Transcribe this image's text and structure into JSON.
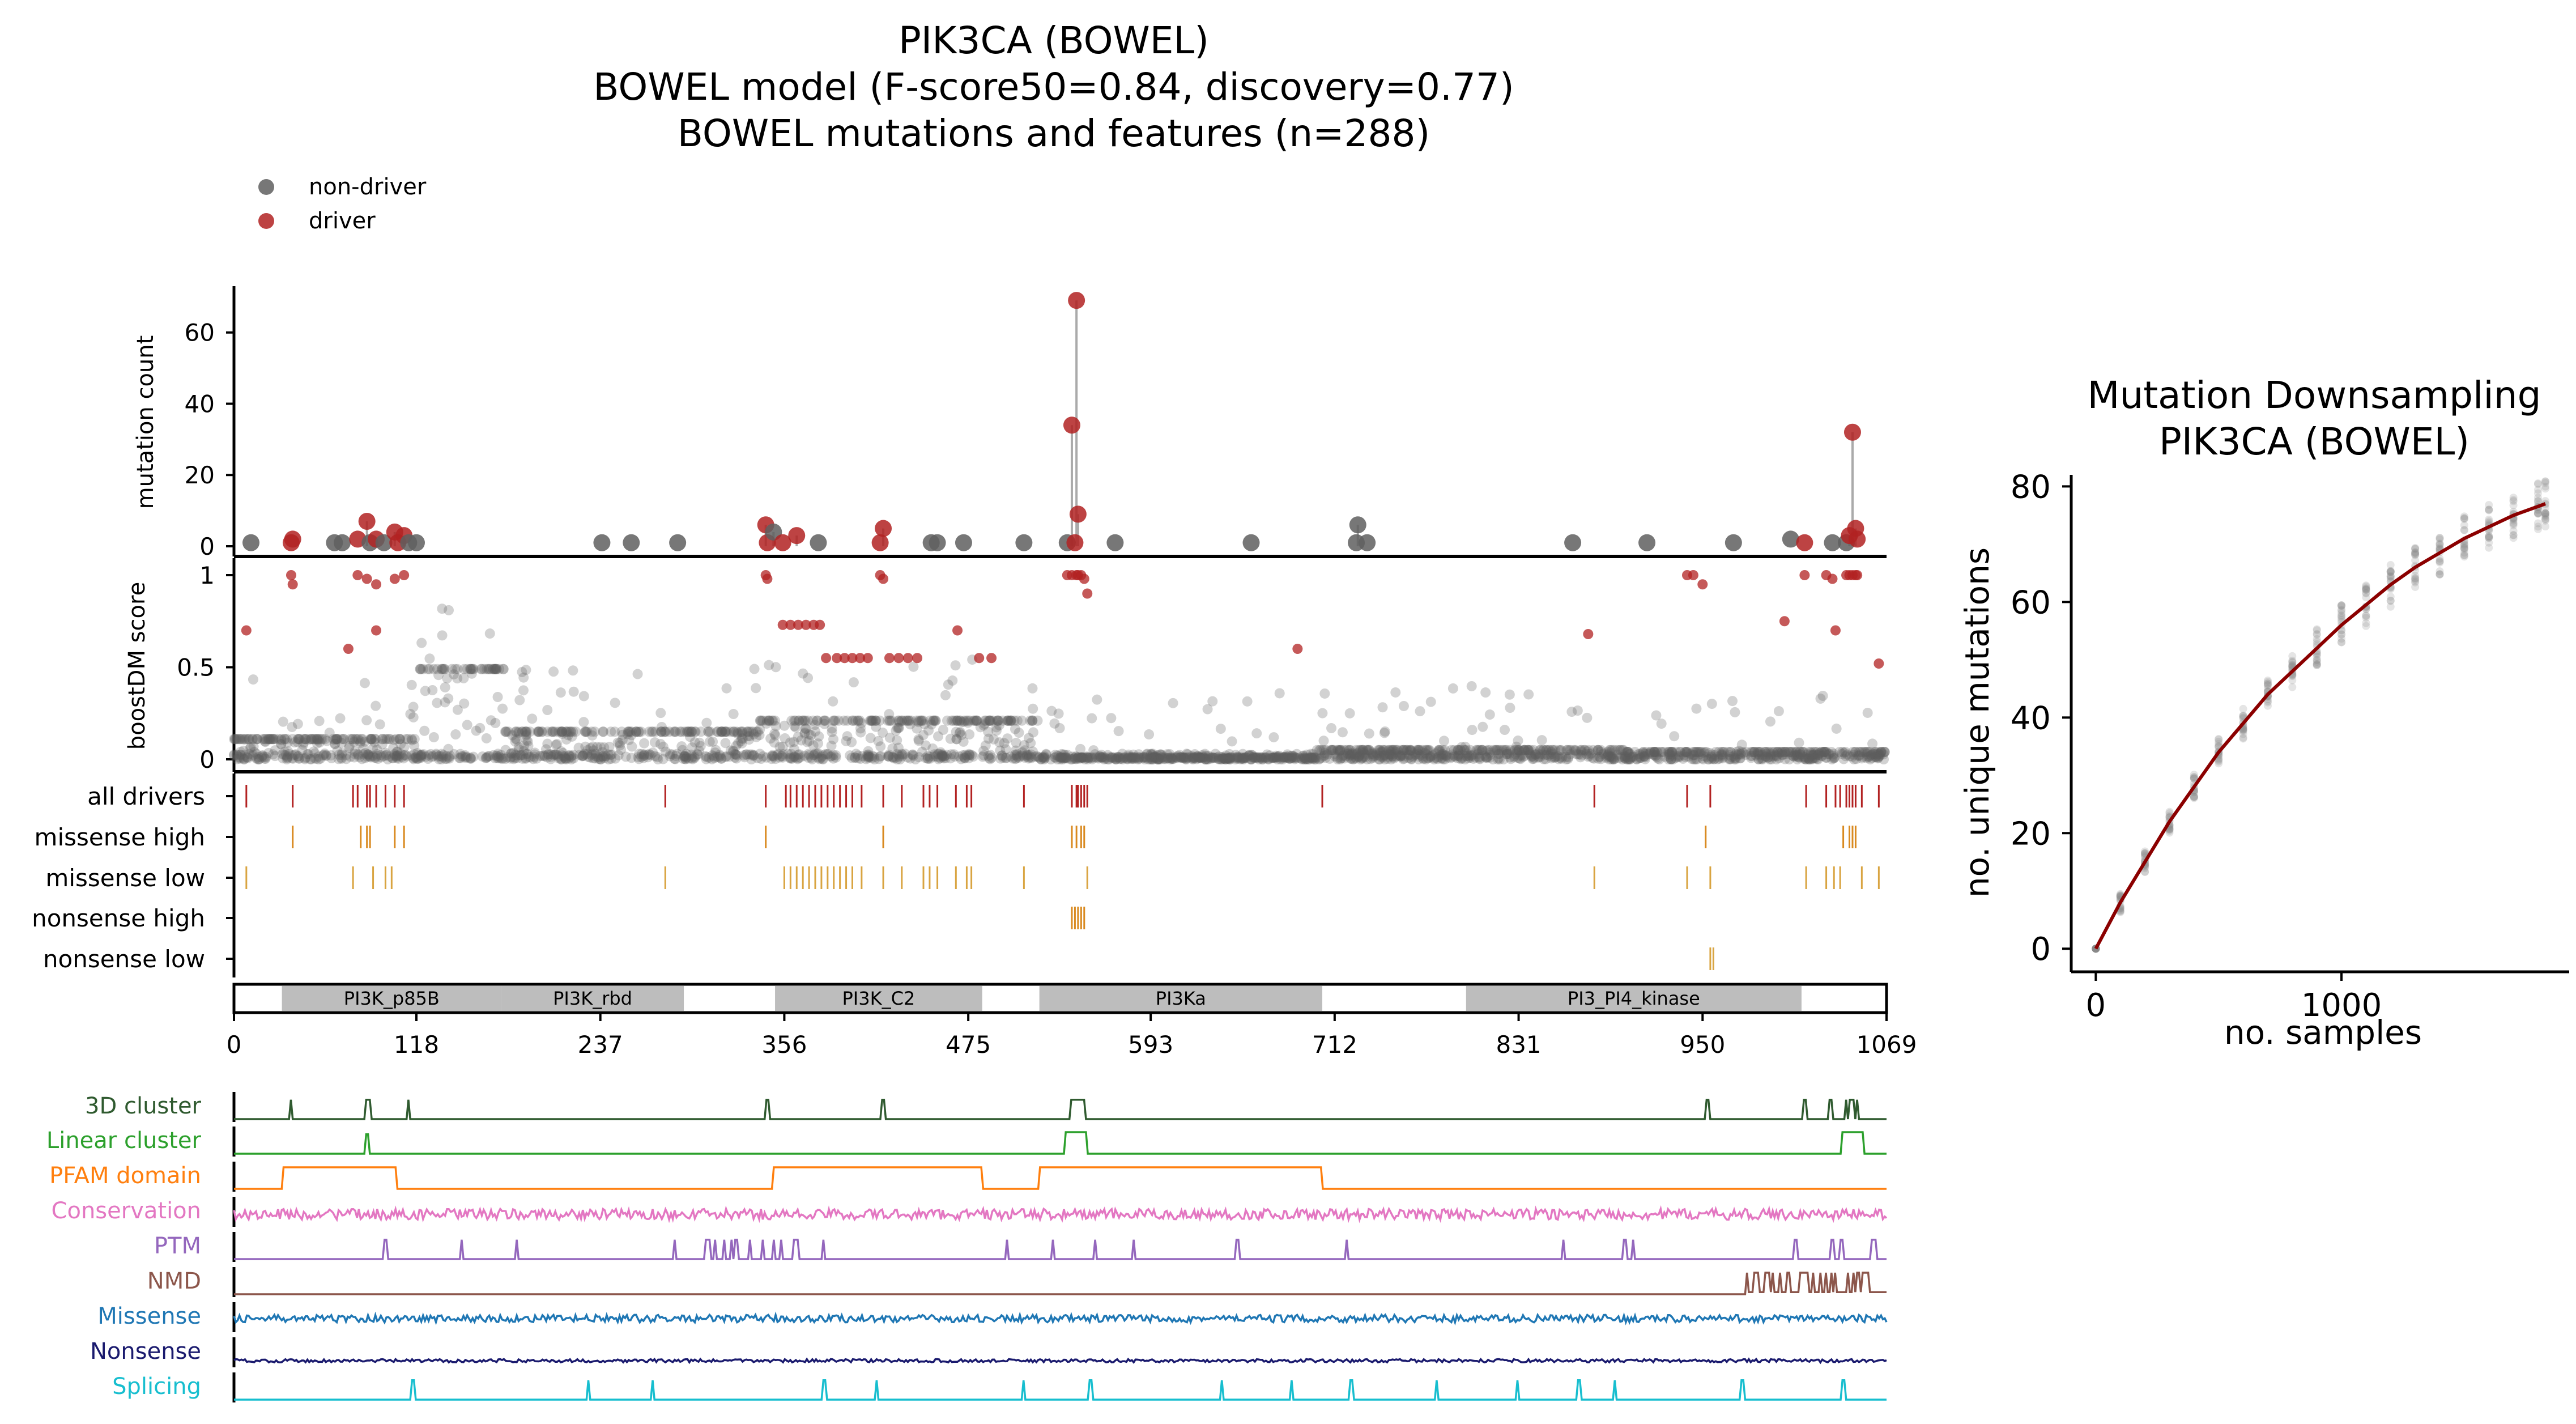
{
  "title": {
    "line1": "PIK3CA (BOWEL)",
    "line2": "BOWEL model (F-score50=0.84, discovery=0.77)",
    "line3": "BOWEL mutations and features (n=288)"
  },
  "legend": [
    {
      "label": "non-driver",
      "color": "#5f5f5f"
    },
    {
      "label": "driver",
      "color": "#b22222"
    }
  ],
  "colors": {
    "nondriver": "#5f5f5f",
    "driver": "#b22222",
    "driver_dark": "#8b0000",
    "missense_high": "#d98a20",
    "missense_low": "#d9a441",
    "domain_fill": "#bdbdbd"
  },
  "chart_data": [
    {
      "type": "scatter",
      "name": "mutation-count-lollipop",
      "ylabel": "mutation count",
      "yticks": [
        0,
        20,
        40,
        60
      ],
      "ylim": [
        0,
        73
      ],
      "xlim": [
        0,
        1069
      ],
      "points": [
        {
          "x": 11,
          "y": 1,
          "driver": false
        },
        {
          "x": 37,
          "y": 1,
          "driver": true
        },
        {
          "x": 38,
          "y": 2,
          "driver": true
        },
        {
          "x": 65,
          "y": 1,
          "driver": false
        },
        {
          "x": 70,
          "y": 1,
          "driver": false
        },
        {
          "x": 80,
          "y": 2,
          "driver": true
        },
        {
          "x": 86,
          "y": 7,
          "driver": true
        },
        {
          "x": 88,
          "y": 1,
          "driver": false
        },
        {
          "x": 92,
          "y": 2,
          "driver": true
        },
        {
          "x": 97,
          "y": 1,
          "driver": false
        },
        {
          "x": 104,
          "y": 4,
          "driver": true
        },
        {
          "x": 106,
          "y": 1,
          "driver": true
        },
        {
          "x": 110,
          "y": 3,
          "driver": true
        },
        {
          "x": 113,
          "y": 1,
          "driver": false
        },
        {
          "x": 118,
          "y": 1,
          "driver": false
        },
        {
          "x": 238,
          "y": 1,
          "driver": false
        },
        {
          "x": 257,
          "y": 1,
          "driver": false
        },
        {
          "x": 287,
          "y": 1,
          "driver": false
        },
        {
          "x": 344,
          "y": 6,
          "driver": true
        },
        {
          "x": 345,
          "y": 1,
          "driver": true
        },
        {
          "x": 349,
          "y": 4,
          "driver": false
        },
        {
          "x": 355,
          "y": 1,
          "driver": true
        },
        {
          "x": 364,
          "y": 3,
          "driver": true
        },
        {
          "x": 378,
          "y": 1,
          "driver": false
        },
        {
          "x": 418,
          "y": 1,
          "driver": true
        },
        {
          "x": 420,
          "y": 5,
          "driver": true
        },
        {
          "x": 451,
          "y": 1,
          "driver": false
        },
        {
          "x": 455,
          "y": 1,
          "driver": false
        },
        {
          "x": 472,
          "y": 1,
          "driver": false
        },
        {
          "x": 511,
          "y": 1,
          "driver": false
        },
        {
          "x": 539,
          "y": 1,
          "driver": false
        },
        {
          "x": 542,
          "y": 34,
          "driver": true
        },
        {
          "x": 545,
          "y": 69,
          "driver": true
        },
        {
          "x": 546,
          "y": 9,
          "driver": true
        },
        {
          "x": 544,
          "y": 1,
          "driver": true
        },
        {
          "x": 570,
          "y": 1,
          "driver": false
        },
        {
          "x": 658,
          "y": 1,
          "driver": false
        },
        {
          "x": 726,
          "y": 1,
          "driver": false
        },
        {
          "x": 727,
          "y": 6,
          "driver": false
        },
        {
          "x": 733,
          "y": 1,
          "driver": false
        },
        {
          "x": 866,
          "y": 1,
          "driver": false
        },
        {
          "x": 914,
          "y": 1,
          "driver": false
        },
        {
          "x": 970,
          "y": 1,
          "driver": false
        },
        {
          "x": 1007,
          "y": 2,
          "driver": false
        },
        {
          "x": 1016,
          "y": 1,
          "driver": true
        },
        {
          "x": 1034,
          "y": 1,
          "driver": false
        },
        {
          "x": 1043,
          "y": 1,
          "driver": false
        },
        {
          "x": 1045,
          "y": 3,
          "driver": true
        },
        {
          "x": 1047,
          "y": 32,
          "driver": true
        },
        {
          "x": 1049,
          "y": 5,
          "driver": true
        },
        {
          "x": 1050,
          "y": 2,
          "driver": true
        }
      ]
    },
    {
      "type": "scatter",
      "name": "boostdm-score",
      "ylabel": "boostDM score",
      "yticks": [
        0,
        0.5,
        1
      ],
      "ylim": [
        -0.02,
        1.05
      ],
      "xlim": [
        0,
        1069
      ],
      "driver_points": [
        [
          37,
          1.0
        ],
        [
          38,
          0.95
        ],
        [
          8,
          0.7
        ],
        [
          80,
          1.0
        ],
        [
          86,
          0.98
        ],
        [
          92,
          0.95
        ],
        [
          110,
          1.0
        ],
        [
          74,
          0.6
        ],
        [
          92,
          0.7
        ],
        [
          104,
          0.98
        ],
        [
          344,
          1.0
        ],
        [
          345,
          0.98
        ],
        [
          355,
          0.73
        ],
        [
          360,
          0.73
        ],
        [
          365,
          0.73
        ],
        [
          370,
          0.73
        ],
        [
          375,
          0.73
        ],
        [
          379,
          0.73
        ],
        [
          383,
          0.55
        ],
        [
          390,
          0.55
        ],
        [
          395,
          0.55
        ],
        [
          400,
          0.55
        ],
        [
          405,
          0.55
        ],
        [
          410,
          0.55
        ],
        [
          418,
          1.0
        ],
        [
          420,
          0.98
        ],
        [
          424,
          0.55
        ],
        [
          430,
          0.55
        ],
        [
          436,
          0.55
        ],
        [
          442,
          0.55
        ],
        [
          468,
          0.7
        ],
        [
          482,
          0.55
        ],
        [
          490,
          0.55
        ],
        [
          539,
          1.0
        ],
        [
          542,
          1.0
        ],
        [
          545,
          1.0
        ],
        [
          546,
          1.0
        ],
        [
          548,
          1.0
        ],
        [
          550,
          0.98
        ],
        [
          552,
          0.9
        ],
        [
          688,
          0.6
        ],
        [
          876,
          0.68
        ],
        [
          940,
          1.0
        ],
        [
          944,
          1.0
        ],
        [
          950,
          0.95
        ],
        [
          1003,
          0.75
        ],
        [
          1016,
          1.0
        ],
        [
          1030,
          1.0
        ],
        [
          1034,
          0.98
        ],
        [
          1036,
          0.7
        ],
        [
          1043,
          1.0
        ],
        [
          1045,
          1.0
        ],
        [
          1047,
          1.0
        ],
        [
          1049,
          1.0
        ],
        [
          1050,
          1.0
        ],
        [
          1064,
          0.52
        ]
      ],
      "nondriver_description": "dense band of non-driver points between 0 and 0.5 across all positions"
    },
    {
      "type": "table",
      "name": "driver-tracks",
      "rows": [
        {
          "label": "all drivers",
          "positions": [
            8,
            38,
            77,
            80,
            86,
            88,
            92,
            98,
            104,
            110,
            279,
            344,
            357,
            360,
            364,
            368,
            372,
            376,
            380,
            384,
            388,
            392,
            396,
            400,
            406,
            420,
            432,
            446,
            450,
            455,
            467,
            474,
            477,
            511,
            542,
            545,
            546,
            548,
            550,
            552,
            704,
            880,
            940,
            955,
            1017,
            1030,
            1036,
            1039,
            1043,
            1045,
            1047,
            1049,
            1053,
            1064
          ],
          "color": "#b22222"
        },
        {
          "label": "missense high",
          "positions": [
            38,
            82,
            86,
            88,
            104,
            110,
            344,
            420,
            542,
            545,
            548,
            550,
            952,
            1041,
            1045,
            1047,
            1049
          ],
          "color": "#d98a20"
        },
        {
          "label": "missense low",
          "positions": [
            8,
            77,
            90,
            98,
            102,
            279,
            356,
            360,
            364,
            368,
            372,
            376,
            380,
            384,
            388,
            392,
            396,
            400,
            406,
            420,
            432,
            446,
            450,
            455,
            467,
            474,
            477,
            511,
            552,
            880,
            940,
            955,
            1017,
            1030,
            1035,
            1039,
            1053,
            1064
          ],
          "color": "#d9a441"
        },
        {
          "label": "nonsense high",
          "positions": [
            542,
            544,
            546,
            548,
            550
          ],
          "color": "#d98a20"
        },
        {
          "label": "nonsense low",
          "positions": [
            955,
            957
          ],
          "color": "#d9a441"
        }
      ]
    },
    {
      "type": "bar",
      "name": "protein-domains",
      "xticks": [
        0,
        118,
        237,
        356,
        475,
        593,
        712,
        831,
        950,
        1069
      ],
      "domains": [
        {
          "label": "PI3K_p85B",
          "start": 31,
          "end": 173
        },
        {
          "label": "PI3K_rbd",
          "start": 173,
          "end": 291
        },
        {
          "label": "PI3K_C2",
          "start": 350,
          "end": 484
        },
        {
          "label": "PI3Ka",
          "start": 521,
          "end": 704
        },
        {
          "label": "PI3_PI4_kinase",
          "start": 797,
          "end": 1014
        }
      ]
    },
    {
      "type": "line",
      "name": "feature-tracks",
      "tracks": [
        {
          "label": "3D cluster",
          "color": "#2f5a2f",
          "spikes": [
            37,
            86,
            88,
            113,
            345,
            420,
            542,
            544,
            546,
            548,
            550,
            953,
            1016,
            1033,
            1043,
            1045,
            1047,
            1050
          ]
        },
        {
          "label": "Linear cluster",
          "color": "#2ca02c",
          "spikes": [
            86
          ],
          "plateaus": [
            [
              538,
              552
            ],
            [
              1040,
              1054
            ]
          ]
        },
        {
          "label": "PFAM domain",
          "color": "#ff7f0e",
          "plateaus": [
            [
              31,
              105
            ],
            [
              349,
              484
            ],
            [
              521,
              704
            ]
          ]
        },
        {
          "label": "Conservation",
          "color": "#e377c2"
        },
        {
          "label": "PTM",
          "color": "#9467bd",
          "spikes": [
            98,
            147,
            183,
            285,
            305,
            307,
            311,
            317,
            322,
            325,
            334,
            342,
            349,
            354,
            362,
            364,
            381,
            500,
            530,
            557,
            582,
            649,
            720,
            860,
            900,
            905,
            1010,
            1034,
            1040,
            1060,
            1062
          ]
        },
        {
          "label": "NMD",
          "color": "#8c564b",
          "plateaus": [
            [
              978,
              1069
            ]
          ]
        },
        {
          "label": "Missense",
          "color": "#1f77b4"
        },
        {
          "label": "Nonsense",
          "color": "#1a1a6e"
        },
        {
          "label": "Splicing",
          "color": "#17becf",
          "spikes": [
            116,
            229,
            271,
            382,
            416,
            511,
            554,
            639,
            684,
            723,
            778,
            830,
            870,
            893,
            976,
            1041
          ]
        }
      ]
    },
    {
      "type": "line",
      "name": "mutation-downsampling",
      "title_line1": "Mutation Downsampling",
      "title_line2": "PIK3CA (BOWEL)",
      "xlabel": "no. samples",
      "ylabel": "no. unique mutations",
      "xticks": [
        0,
        1000
      ],
      "yticks": [
        0,
        20,
        40,
        60,
        80
      ],
      "xlim": [
        -100,
        1950
      ],
      "ylim": [
        -4,
        82
      ],
      "curve": [
        [
          0,
          0
        ],
        [
          100,
          8
        ],
        [
          200,
          15
        ],
        [
          300,
          22
        ],
        [
          400,
          28
        ],
        [
          500,
          34
        ],
        [
          600,
          39
        ],
        [
          700,
          44
        ],
        [
          800,
          48
        ],
        [
          900,
          52
        ],
        [
          1000,
          56
        ],
        [
          1100,
          59.5
        ],
        [
          1200,
          63
        ],
        [
          1300,
          66
        ],
        [
          1400,
          68.5
        ],
        [
          1500,
          71
        ],
        [
          1600,
          73
        ],
        [
          1700,
          75
        ],
        [
          1830,
          77
        ]
      ],
      "sample_columns": [
        0,
        100,
        200,
        300,
        400,
        500,
        600,
        700,
        800,
        900,
        1000,
        1100,
        1200,
        1300,
        1400,
        1500,
        1600,
        1700,
        1800,
        1830
      ]
    }
  ]
}
